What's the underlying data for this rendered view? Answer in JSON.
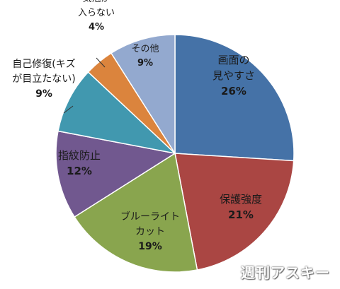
{
  "chart_data": {
    "type": "pie",
    "slices": [
      {
        "label_lines": [
          "画面の",
          "見やすさ"
        ],
        "value": 26,
        "value_text": "26%",
        "color": "#4572A7"
      },
      {
        "label_lines": [
          "保護強度"
        ],
        "value": 21,
        "value_text": "21%",
        "color": "#AA4643"
      },
      {
        "label_lines": [
          "ブルーライト",
          "カット"
        ],
        "value": 19,
        "value_text": "19%",
        "color": "#89A54E"
      },
      {
        "label_lines": [
          "指紋防止"
        ],
        "value": 12,
        "value_text": "12%",
        "color": "#71588F"
      },
      {
        "label_lines": [
          "自己修復(キズ",
          "が目立たない)"
        ],
        "value": 9,
        "value_text": "9%",
        "color": "#4198AF"
      },
      {
        "label_lines": [
          "気泡が",
          "入らない"
        ],
        "value": 4,
        "value_text": "4%",
        "color": "#DB843D"
      },
      {
        "label_lines": [
          "その他"
        ],
        "value": 9,
        "value_text": "9%",
        "color": "#93A9CF"
      }
    ]
  },
  "watermark": "週刊アスキー"
}
